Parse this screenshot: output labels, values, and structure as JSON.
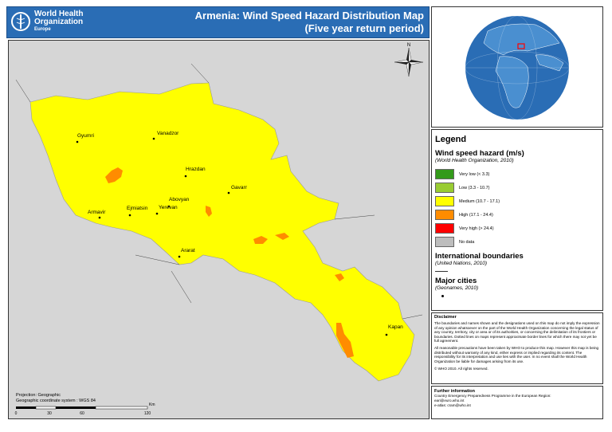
{
  "header": {
    "logo": {
      "lines": [
        "World Health",
        "Organization"
      ],
      "region": "Europe"
    },
    "title": "Armenia: Wind Speed Hazard Distribution Map",
    "subtitle": "(Five year return period)"
  },
  "map": {
    "cities": [
      "Gyumri",
      "Vanadzor",
      "Hrazdan",
      "Gavarr",
      "Abovyan",
      "Armavir",
      "Ejmiatsin",
      "Yerevan",
      "Ararat",
      "Kapan"
    ],
    "compass": "N",
    "projection": "Projection: Geographic",
    "coordinate_system": "Geographic coordinate system : WGS 84",
    "scale": {
      "labels": [
        "0",
        "30",
        "60",
        "120"
      ],
      "unit": "Km"
    }
  },
  "legend": {
    "title": "Legend",
    "hazard_title": "Wind speed hazard (m/s)",
    "hazard_source": "(World Health Organization, 2010)",
    "items": [
      {
        "label": "Very low (< 3.3)",
        "color": "#339a1a"
      },
      {
        "label": "Low (3.3 - 10.7)",
        "color": "#99cc33"
      },
      {
        "label": "Medium (10.7 - 17.1)",
        "color": "#ffff00"
      },
      {
        "label": "High (17.1 - 24.4)",
        "color": "#ff8c00"
      },
      {
        "label": "Very high (> 24.4)",
        "color": "#ff0000"
      },
      {
        "label": "No data",
        "color": "#bdbdbd"
      }
    ],
    "boundaries_title": "International boundaries",
    "boundaries_source": "(United Nations, 2010)",
    "cities_title": "Major cities",
    "cities_source": "(Geonames, 2010)"
  },
  "disclaimer": {
    "title": "Disclaimer",
    "paragraphs": [
      "The boundaries and names shown and the designations used on this map do not imply the expression of any opinion whatsoever on the part of the World Health Organization concerning the legal status of any country, territory, city or area or of its authorities, or concerning the delimitation of its frontiers or boundaries. Dotted lines on maps represent approximate border lines for which there may not yet be full agreement.",
      "All reasonable precautions have been taken by WHO to produce this map. However this map is being distributed without warranty of any kind, either express or implied regarding its content. The responsibility for its interpretation and use lies with the user. In no event shall the World Health Organization be liable for damages arising from its use.",
      "© WHO 2010. All rights reserved."
    ]
  },
  "further_information": {
    "title": "Further information",
    "lines": [
      "Country Emergency Preparedness Programme in the European Region:",
      "eari@euro.who.int",
      "e-atlas: cram@who.int"
    ]
  }
}
